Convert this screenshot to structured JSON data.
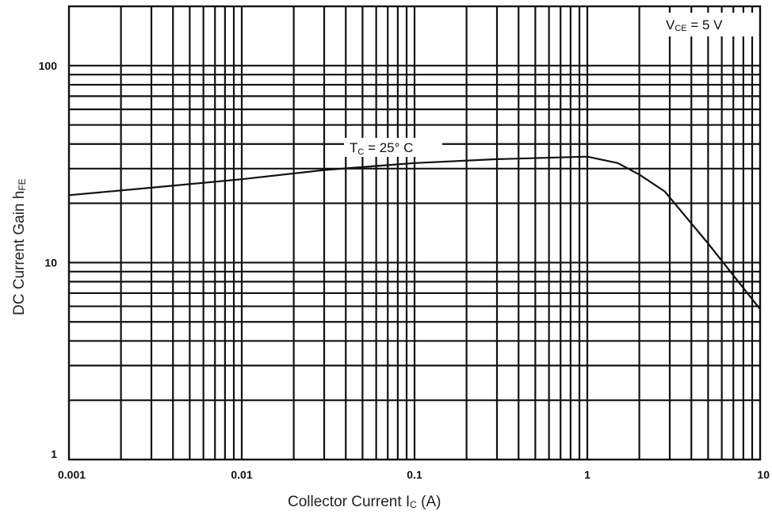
{
  "chart_data": {
    "type": "line",
    "x_scale": "log",
    "y_scale": "log",
    "xlim": [
      0.001,
      10
    ],
    "ylim": [
      1,
      200
    ],
    "grid": true,
    "xlabel_main": "Collector Current  I",
    "xlabel_sub": "C",
    "xlabel_unit": "  (A)",
    "ylabel_main": "DC Current Gain  h",
    "ylabel_sub": "FE",
    "x_tick_labels": [
      "0.001",
      "0.01",
      "0.1",
      "1",
      "10"
    ],
    "x_tick_values": [
      0.001,
      0.01,
      0.1,
      1,
      10
    ],
    "y_tick_labels": [
      "1",
      "10",
      "100"
    ],
    "y_tick_values": [
      1,
      10,
      100
    ],
    "annotation_vce": {
      "main": "V",
      "sub": "CE",
      "rest": "  = 5  V"
    },
    "series": [
      {
        "label_main": "T",
        "label_sub": "C",
        "label_rest": " = 25° C",
        "x": [
          0.001,
          0.003,
          0.01,
          0.03,
          0.1,
          0.3,
          1.0,
          1.5,
          2.0,
          2.8,
          5.0,
          10.0
        ],
        "y": [
          22,
          24,
          26.5,
          29.5,
          32,
          33.5,
          34.5,
          32,
          28,
          23,
          12.5,
          5.8
        ]
      }
    ]
  }
}
